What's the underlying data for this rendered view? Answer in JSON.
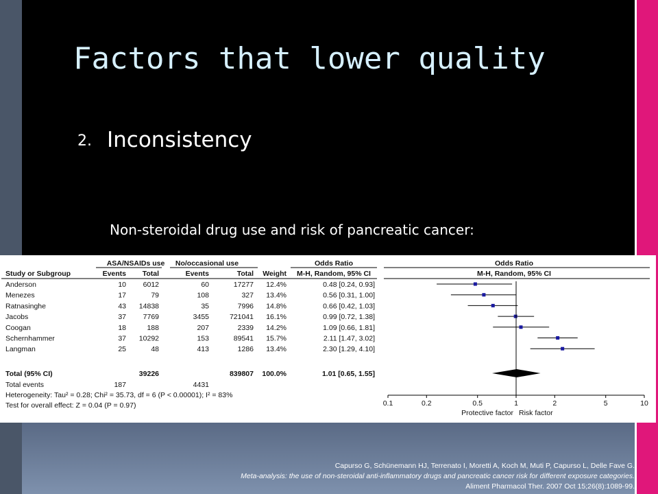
{
  "slide": {
    "title": "Factors that lower quality",
    "bullet_number": "2.",
    "bullet_text": "Inconsistency",
    "subtitle": "Non-steroidal drug use and risk of pancreatic cancer:"
  },
  "colors": {
    "left_bar": "#4a5668",
    "right_bar": "#e0177a",
    "title": "#d6f0ff",
    "marker": "#1a1aa0"
  },
  "chart_data": {
    "type": "table",
    "header_groups": [
      "ASA/NSAIDs use",
      "No/occasional use",
      "Odds Ratio",
      "Odds Ratio"
    ],
    "columns": [
      "Study or Subgroup",
      "Events",
      "Total",
      "Events",
      "Total",
      "Weight",
      "M-H, Random, 95% CI",
      "M-H, Random, 95% CI"
    ],
    "studies": [
      {
        "name": "Anderson",
        "e1": "10",
        "t1": "6012",
        "e2": "60",
        "t2": "17277",
        "weight": "12.4%",
        "or_text": "0.48 [0.24, 0.93]",
        "or": 0.48,
        "lo": 0.24,
        "hi": 0.93
      },
      {
        "name": "Menezes",
        "e1": "17",
        "t1": "79",
        "e2": "108",
        "t2": "327",
        "weight": "13.4%",
        "or_text": "0.56 [0.31, 1.00]",
        "or": 0.56,
        "lo": 0.31,
        "hi": 1.0
      },
      {
        "name": "Ratnasinghe",
        "e1": "43",
        "t1": "14838",
        "e2": "35",
        "t2": "7996",
        "weight": "14.8%",
        "or_text": "0.66 [0.42, 1.03]",
        "or": 0.66,
        "lo": 0.42,
        "hi": 1.03
      },
      {
        "name": "Jacobs",
        "e1": "37",
        "t1": "7769",
        "e2": "3455",
        "t2": "721041",
        "weight": "16.1%",
        "or_text": "0.99 [0.72, 1.38]",
        "or": 0.99,
        "lo": 0.72,
        "hi": 1.38
      },
      {
        "name": "Coogan",
        "e1": "18",
        "t1": "188",
        "e2": "207",
        "t2": "2339",
        "weight": "14.2%",
        "or_text": "1.09 [0.66, 1.81]",
        "or": 1.09,
        "lo": 0.66,
        "hi": 1.81
      },
      {
        "name": "Schernhammer",
        "e1": "37",
        "t1": "10292",
        "e2": "153",
        "t2": "89541",
        "weight": "15.7%",
        "or_text": "2.11 [1.47, 3.02]",
        "or": 2.11,
        "lo": 1.47,
        "hi": 3.02
      },
      {
        "name": "Langman",
        "e1": "25",
        "t1": "48",
        "e2": "413",
        "t2": "1286",
        "weight": "13.4%",
        "or_text": "2.30 [1.29, 4.10]",
        "or": 2.3,
        "lo": 1.29,
        "hi": 4.1
      }
    ],
    "total": {
      "name": "Total (95% CI)",
      "t1": "39226",
      "t2": "839807",
      "weight": "100.0%",
      "or_text": "1.01 [0.65, 1.55]",
      "or": 1.01,
      "lo": 0.65,
      "hi": 1.55
    },
    "total_events": {
      "label": "Total events",
      "e1": "187",
      "e2": "4431"
    },
    "heterogeneity": "Heterogeneity: Tau² = 0.28; Chi² = 35.73, df = 6 (P < 0.00001); I² = 83%",
    "overall_effect": "Test for overall effect: Z = 0.04 (P = 0.97)",
    "x_scale": "log",
    "x_ticks": [
      0.1,
      0.2,
      0.5,
      1,
      2,
      5,
      10
    ],
    "x_tick_labels": [
      "0.1",
      "0.2",
      "0.5",
      "1",
      "2",
      "5",
      "10"
    ],
    "xlim": [
      0.1,
      10
    ],
    "favours_left": "Protective factor",
    "favours_right": "Risk factor"
  },
  "citation": {
    "line1": "Capurso G, Schünemann HJ, Terrenato I, Moretti A, Koch M, Muti P, Capurso L, Delle Fave G.",
    "line2": "Meta-analysis: the use of non-steroidal anti-inflammatory drugs and pancreatic cancer risk for different exposure categories.",
    "line3": "Aliment Pharmacol Ther. 2007 Oct 15;26(8):1089-99."
  }
}
